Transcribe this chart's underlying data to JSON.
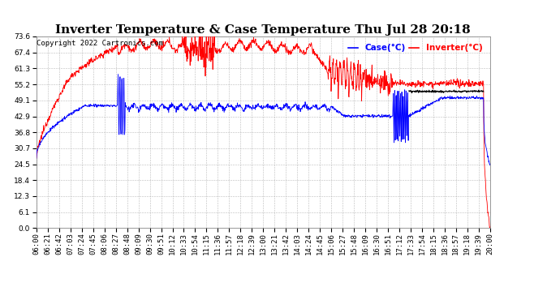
{
  "title": "Inverter Temperature & Case Temperature Thu Jul 28 20:18",
  "copyright": "Copyright 2022 Cartronics.com",
  "legend_case": "Case(°C)",
  "legend_inverter": "Inverter(°C)",
  "case_color": "blue",
  "inverter_color": "red",
  "black_color": "black",
  "yticks": [
    0.0,
    6.1,
    12.3,
    18.4,
    24.5,
    30.7,
    36.8,
    42.9,
    49.1,
    55.2,
    61.3,
    67.4,
    73.6
  ],
  "ymin": 0.0,
  "ymax": 73.6,
  "xtick_labels": [
    "06:00",
    "06:21",
    "06:42",
    "07:03",
    "07:24",
    "07:45",
    "08:06",
    "08:27",
    "08:48",
    "09:09",
    "09:30",
    "09:51",
    "10:12",
    "10:33",
    "10:54",
    "11:15",
    "11:36",
    "11:57",
    "12:18",
    "12:39",
    "13:00",
    "13:21",
    "13:42",
    "14:03",
    "14:24",
    "14:45",
    "15:06",
    "15:27",
    "15:48",
    "16:09",
    "16:30",
    "16:51",
    "17:12",
    "17:33",
    "17:54",
    "18:15",
    "18:36",
    "18:57",
    "19:18",
    "19:39",
    "20:00"
  ],
  "background_color": "#ffffff",
  "plot_background": "#ffffff",
  "grid_color": "#aaaaaa",
  "title_fontsize": 11,
  "tick_fontsize": 6.5,
  "copyright_fontsize": 6.5,
  "legend_fontsize": 7.5,
  "figsize": [
    6.9,
    3.75
  ],
  "dpi": 100
}
